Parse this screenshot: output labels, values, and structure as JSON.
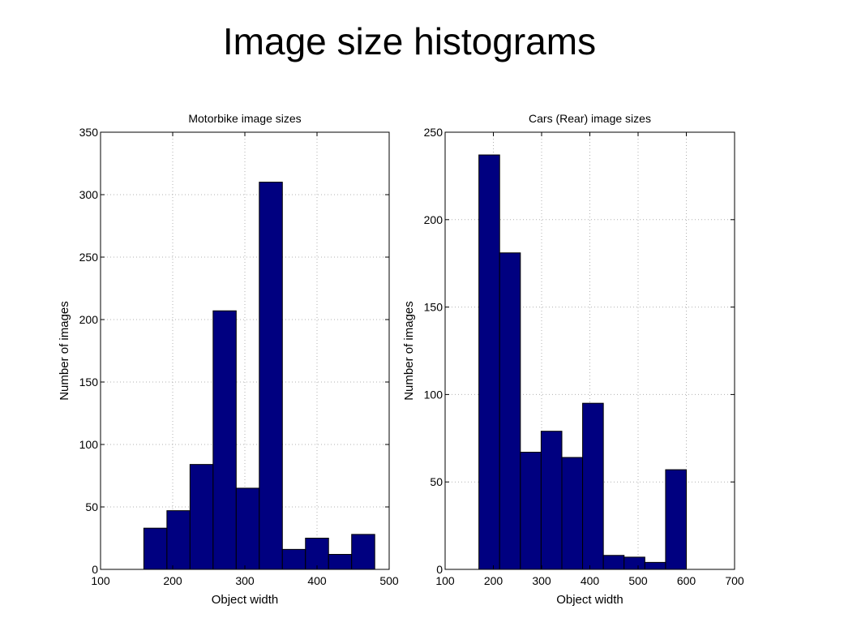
{
  "slide": {
    "title": "Image size histograms"
  },
  "colors": {
    "bar_fill": "#000080",
    "bar_edge": "#000000",
    "grid": "#b0b0b0"
  },
  "chart_data": [
    {
      "type": "bar",
      "title": "Motorbike image sizes",
      "xlabel": "Object width",
      "ylabel": "Number of images",
      "xlim": [
        100,
        500
      ],
      "ylim": [
        0,
        350
      ],
      "xticks": [
        100,
        200,
        300,
        400,
        500
      ],
      "yticks": [
        0,
        50,
        100,
        150,
        200,
        250,
        300,
        350
      ],
      "grid": true,
      "bin_edges": [
        160,
        192,
        224,
        256,
        288,
        320,
        352,
        384,
        416,
        448,
        480
      ],
      "values": [
        33,
        47,
        84,
        207,
        65,
        310,
        16,
        25,
        12,
        28
      ]
    },
    {
      "type": "bar",
      "title": "Cars (Rear) image sizes",
      "xlabel": "Object width",
      "ylabel": "Number of images",
      "xlim": [
        100,
        700
      ],
      "ylim": [
        0,
        250
      ],
      "xticks": [
        100,
        200,
        300,
        400,
        500,
        600,
        700
      ],
      "yticks": [
        0,
        50,
        100,
        150,
        200,
        250
      ],
      "grid": true,
      "bin_edges": [
        170,
        213,
        256,
        299,
        342,
        385,
        428,
        471,
        514,
        557,
        600
      ],
      "values": [
        237,
        181,
        67,
        79,
        64,
        95,
        8,
        7,
        4,
        57
      ]
    }
  ]
}
